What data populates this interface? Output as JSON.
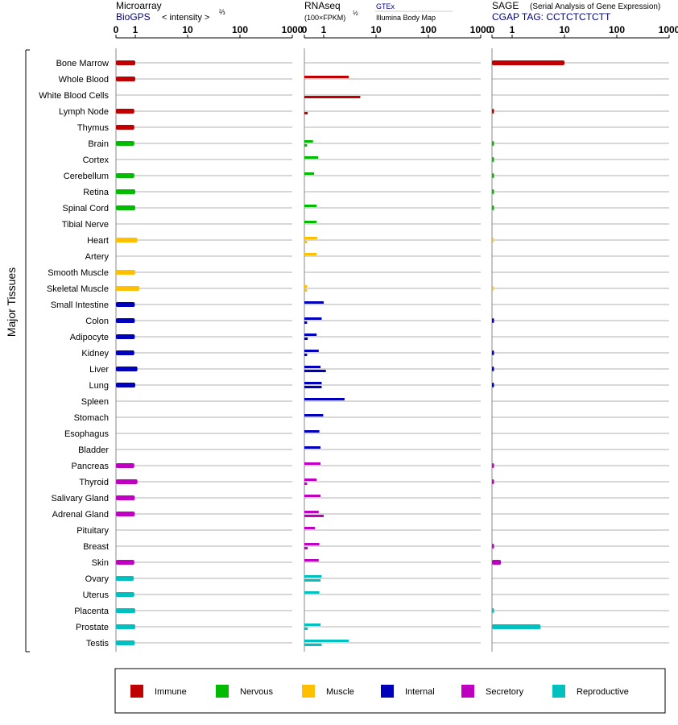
{
  "chart_data": {
    "type": "bar",
    "group_label": "Major Tissues",
    "axis_ticks": [
      "0",
      "1",
      "10",
      "100",
      "1000"
    ],
    "panels": {
      "microarray": {
        "title": "Microarray",
        "source": "BioGPS",
        "unit": "< intensity >",
        "unit_exp": "⅔"
      },
      "rnaseq": {
        "title": "RNAseq",
        "unit": "(100×FPKM)",
        "unit_exp": "½",
        "legend_a": "GTEx",
        "legend_b": "Illumina Body Map"
      },
      "sage": {
        "title": "SAGE",
        "subtitle": "(Serial Analysis of Gene Expression)",
        "tag": "CGAP TAG: CCTCTCTCTT"
      }
    },
    "categories": {
      "immune": {
        "label": "Immune",
        "color": "#c00000"
      },
      "nervous": {
        "label": "Nervous",
        "color": "#00bb00"
      },
      "muscle": {
        "label": "Muscle",
        "color": "#ffc000"
      },
      "internal": {
        "label": "Internal",
        "color": "#0000bb"
      },
      "secretory": {
        "label": "Secretory",
        "color": "#c000c0"
      },
      "reproductive": {
        "label": "Reproductive",
        "color": "#00c0c0"
      }
    },
    "category_order": [
      "immune",
      "nervous",
      "muscle",
      "internal",
      "secretory",
      "reproductive"
    ],
    "tissues": [
      {
        "name": "Bone Marrow",
        "cat": "immune",
        "micro": 1.0,
        "gtex": null,
        "ibm": null,
        "sage": 10.0
      },
      {
        "name": "Whole Blood",
        "cat": "immune",
        "micro": 1.0,
        "gtex": 3.0,
        "ibm": null,
        "sage": null
      },
      {
        "name": "White Blood Cells",
        "cat": "immune",
        "micro": null,
        "gtex": null,
        "ibm": 5.0,
        "sage": null
      },
      {
        "name": "Lymph Node",
        "cat": "immune",
        "micro": 0.9,
        "gtex": null,
        "ibm": 0.03,
        "sage": 0.01
      },
      {
        "name": "Thymus",
        "cat": "immune",
        "micro": 0.9,
        "gtex": null,
        "ibm": null,
        "sage": null
      },
      {
        "name": "Brain",
        "cat": "nervous",
        "micro": 0.9,
        "gtex": 0.2,
        "ibm": 0.02,
        "sage": 0.01
      },
      {
        "name": "Cortex",
        "cat": "nervous",
        "micro": null,
        "gtex": 0.5,
        "ibm": null,
        "sage": 0.01
      },
      {
        "name": "Cerebellum",
        "cat": "nervous",
        "micro": 0.9,
        "gtex": 0.25,
        "ibm": null,
        "sage": 0.01
      },
      {
        "name": "Retina",
        "cat": "nervous",
        "micro": 1.0,
        "gtex": null,
        "ibm": null,
        "sage": 0.01
      },
      {
        "name": "Spinal Cord",
        "cat": "nervous",
        "micro": 1.0,
        "gtex": 0.4,
        "ibm": null,
        "sage": 0.01
      },
      {
        "name": "Tibial Nerve",
        "cat": "nervous",
        "micro": null,
        "gtex": 0.4,
        "ibm": null,
        "sage": null
      },
      {
        "name": "Heart",
        "cat": "muscle",
        "micro": 1.1,
        "gtex": 0.45,
        "ibm": 0.02,
        "sage": 0.005
      },
      {
        "name": "Artery",
        "cat": "muscle",
        "micro": null,
        "gtex": 0.4,
        "ibm": null,
        "sage": null
      },
      {
        "name": "Smooth Muscle",
        "cat": "muscle",
        "micro": 1.0,
        "gtex": null,
        "ibm": null,
        "sage": null
      },
      {
        "name": "Skeletal Muscle",
        "cat": "muscle",
        "micro": 1.2,
        "gtex": 0.02,
        "ibm": 0.02,
        "sage": 0.005
      },
      {
        "name": "Small Intestine",
        "cat": "internal",
        "micro": 0.95,
        "gtex": 1.0,
        "ibm": null,
        "sage": null
      },
      {
        "name": "Colon",
        "cat": "internal",
        "micro": 0.95,
        "gtex": 0.8,
        "ibm": 0.02,
        "sage": 0.01
      },
      {
        "name": "Adipocyte",
        "cat": "internal",
        "micro": 0.95,
        "gtex": 0.4,
        "ibm": 0.03,
        "sage": null
      },
      {
        "name": "Kidney",
        "cat": "internal",
        "micro": 0.9,
        "gtex": 0.55,
        "ibm": 0.02,
        "sage": 0.01
      },
      {
        "name": "Liver",
        "cat": "internal",
        "micro": 1.1,
        "gtex": 0.7,
        "ibm": 1.1,
        "sage": 0.01
      },
      {
        "name": "Lung",
        "cat": "internal",
        "micro": 1.0,
        "gtex": 0.8,
        "ibm": 0.8,
        "sage": 0.01
      },
      {
        "name": "Spleen",
        "cat": "internal",
        "micro": null,
        "gtex": 2.5,
        "ibm": null,
        "sage": null
      },
      {
        "name": "Stomach",
        "cat": "internal",
        "micro": null,
        "gtex": 0.95,
        "ibm": null,
        "sage": null
      },
      {
        "name": "Esophagus",
        "cat": "internal",
        "micro": null,
        "gtex": 0.6,
        "ibm": null,
        "sage": null
      },
      {
        "name": "Bladder",
        "cat": "internal",
        "micro": null,
        "gtex": 0.7,
        "ibm": null,
        "sage": null
      },
      {
        "name": "Pancreas",
        "cat": "secretory",
        "micro": 0.9,
        "gtex": 0.7,
        "ibm": null,
        "sage": 0.01
      },
      {
        "name": "Thyroid",
        "cat": "secretory",
        "micro": 1.1,
        "gtex": 0.4,
        "ibm": 0.02,
        "sage": 0.01
      },
      {
        "name": "Salivary Gland",
        "cat": "secretory",
        "micro": 0.95,
        "gtex": 0.7,
        "ibm": null,
        "sage": null
      },
      {
        "name": "Adrenal Gland",
        "cat": "secretory",
        "micro": 0.95,
        "gtex": 0.55,
        "ibm": 1.0,
        "sage": null
      },
      {
        "name": "Pituitary",
        "cat": "secretory",
        "micro": null,
        "gtex": 0.3,
        "ibm": null,
        "sage": null
      },
      {
        "name": "Breast",
        "cat": "secretory",
        "micro": null,
        "gtex": 0.6,
        "ibm": 0.03,
        "sage": 0.01
      },
      {
        "name": "Skin",
        "cat": "secretory",
        "micro": 0.9,
        "gtex": 0.55,
        "ibm": null,
        "sage": 0.2
      },
      {
        "name": "Ovary",
        "cat": "reproductive",
        "micro": 0.85,
        "gtex": 0.8,
        "ibm": 0.7,
        "sage": null
      },
      {
        "name": "Uterus",
        "cat": "reproductive",
        "micro": 0.9,
        "gtex": 0.6,
        "ibm": null,
        "sage": null
      },
      {
        "name": "Placenta",
        "cat": "reproductive",
        "micro": 1.0,
        "gtex": null,
        "ibm": null,
        "sage": 0.01
      },
      {
        "name": "Prostate",
        "cat": "reproductive",
        "micro": 1.0,
        "gtex": 0.7,
        "ibm": 0.03,
        "sage": 3.5
      },
      {
        "name": "Testis",
        "cat": "reproductive",
        "micro": 0.95,
        "gtex": 3.0,
        "ibm": 0.8,
        "sage": null
      }
    ]
  }
}
